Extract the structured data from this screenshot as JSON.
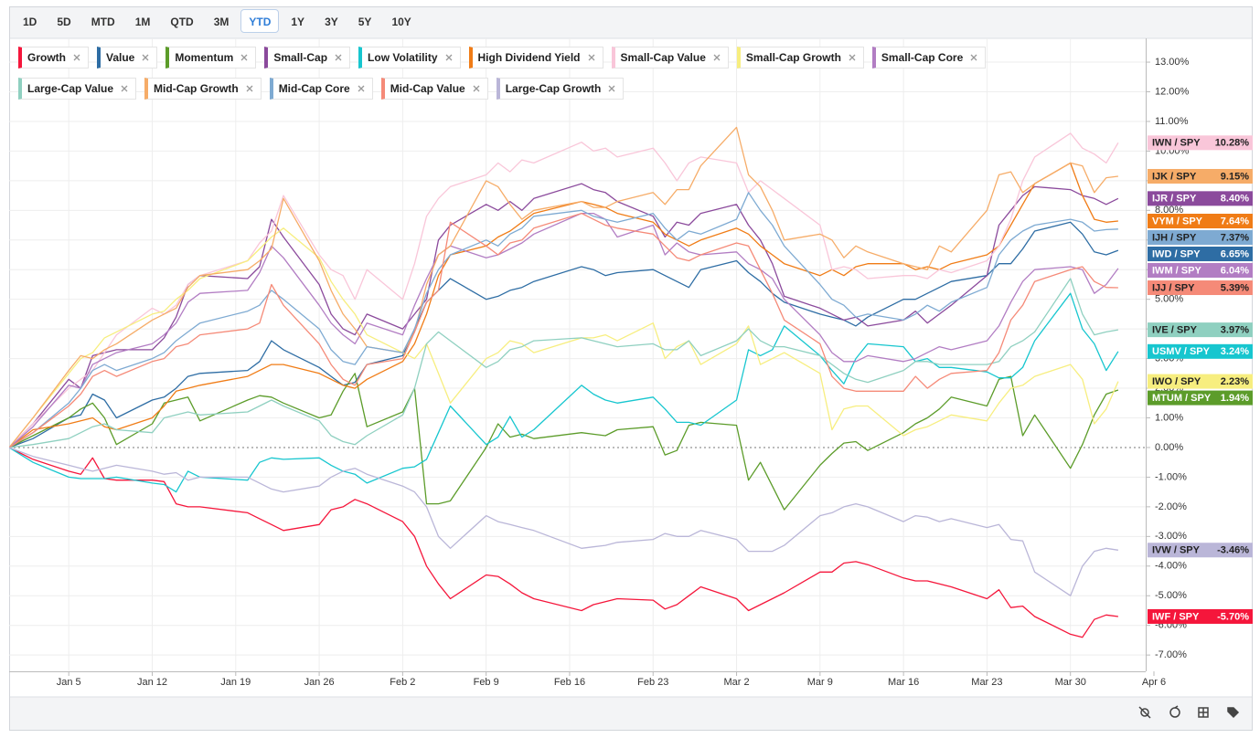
{
  "toolbar": {
    "ranges": [
      "1D",
      "5D",
      "MTD",
      "1M",
      "QTD",
      "3M",
      "YTD",
      "1Y",
      "3Y",
      "5Y",
      "10Y"
    ],
    "selected": "YTD"
  },
  "chart_data": {
    "type": "line",
    "x": [
      "Dec 31",
      "Jan 2",
      "Jan 5",
      "Jan 6",
      "Jan 7",
      "Jan 8",
      "Jan 9",
      "Jan 12",
      "Jan 13",
      "Jan 14",
      "Jan 15",
      "Jan 16",
      "Jan 20",
      "Jan 21",
      "Jan 22",
      "Jan 23",
      "Jan 26",
      "Jan 27",
      "Jan 28",
      "Jan 29",
      "Jan 30",
      "Feb 2",
      "Feb 3",
      "Feb 4",
      "Feb 5",
      "Feb 6",
      "Feb 9",
      "Feb 10",
      "Feb 11",
      "Feb 12",
      "Feb 13",
      "Feb 17",
      "Feb 18",
      "Feb 19",
      "Feb 20",
      "Feb 23",
      "Feb 24",
      "Feb 25",
      "Feb 26",
      "Feb 27",
      "Mar 2",
      "Mar 3",
      "Mar 4",
      "Mar 5",
      "Mar 6",
      "Mar 9",
      "Mar 10",
      "Mar 11",
      "Mar 12",
      "Mar 13",
      "Mar 16",
      "Mar 17",
      "Mar 18",
      "Mar 19",
      "Mar 20",
      "Mar 23",
      "Mar 24",
      "Mar 25",
      "Mar 26",
      "Mar 27",
      "Mar 30",
      "Mar 31",
      "Apr 1",
      "Apr 2",
      "Apr 3"
    ],
    "xlim": [
      "Dec 31",
      "Apr 6"
    ],
    "xticks": [
      "Jan 5",
      "Jan 12",
      "Jan 19",
      "Jan 26",
      "Feb 2",
      "Feb 9",
      "Feb 16",
      "Feb 23",
      "Mar 2",
      "Mar 9",
      "Mar 16",
      "Mar 23",
      "Mar 30",
      "Apr 6"
    ],
    "ylim": [
      -7.55,
      13.71
    ],
    "yticks": [
      {
        "value": -7,
        "label": "-7.00%"
      },
      {
        "value": -6,
        "label": "-6.00%"
      },
      {
        "value": -5,
        "label": "-5.00%"
      },
      {
        "value": -4,
        "label": "-4.00%"
      },
      {
        "value": -3,
        "label": "-3.00%"
      },
      {
        "value": -2,
        "label": "-2.00%"
      },
      {
        "value": -1,
        "label": "-1.00%"
      },
      {
        "value": 0,
        "label": "0.00%"
      },
      {
        "value": 1,
        "label": "1.00%"
      },
      {
        "value": 2,
        "label": "2.00%"
      },
      {
        "value": 3,
        "label": "3.00%"
      },
      {
        "value": 4,
        "label": "4.00%"
      },
      {
        "value": 5,
        "label": "5.00%"
      },
      {
        "value": 6,
        "label": "6.00%"
      },
      {
        "value": 7,
        "label": "7.00%"
      },
      {
        "value": 8,
        "label": "8.00%"
      },
      {
        "value": 9,
        "label": "9.00%"
      },
      {
        "value": 10,
        "label": "10.00%"
      },
      {
        "value": 11,
        "label": "11.00%"
      },
      {
        "value": 12,
        "label": "12.00%"
      },
      {
        "value": 13,
        "label": "13.00%"
      }
    ],
    "grid": true,
    "series": [
      {
        "name": "Growth",
        "ticker": "IWF / SPY",
        "color": "#f5163b",
        "end_label": "-5.70%",
        "values": [
          0,
          -0.4,
          -0.8,
          -0.9,
          -0.35,
          -1.05,
          -1.1,
          -1.1,
          -1.15,
          -1.9,
          -2.0,
          -2.0,
          -2.2,
          -2.4,
          -2.6,
          -2.8,
          -2.6,
          -2.1,
          -2.0,
          -1.75,
          -1.9,
          -2.5,
          -3.0,
          -4.0,
          -4.6,
          -5.1,
          -4.3,
          -4.35,
          -4.6,
          -4.9,
          -5.1,
          -5.5,
          -5.3,
          -5.2,
          -5.1,
          -5.15,
          -5.45,
          -5.3,
          -5.0,
          -4.7,
          -5.1,
          -5.5,
          -5.3,
          -5.1,
          -4.9,
          -4.2,
          -4.2,
          -3.9,
          -3.85,
          -3.95,
          -4.4,
          -4.5,
          -4.5,
          -4.6,
          -4.7,
          -5.1,
          -4.8,
          -5.4,
          -5.35,
          -5.7,
          -6.3,
          -6.4,
          -5.8,
          -5.65,
          -5.7
        ]
      },
      {
        "name": "Value",
        "ticker": "IWD / SPY",
        "color": "#2e6da4",
        "end_label": "6.65%",
        "values": [
          0,
          0.3,
          1.0,
          1.1,
          1.8,
          1.6,
          1.0,
          1.6,
          1.7,
          2.0,
          2.4,
          2.5,
          2.6,
          2.9,
          3.6,
          3.3,
          2.7,
          2.4,
          2.1,
          2.2,
          2.8,
          3.1,
          4.0,
          4.9,
          5.3,
          5.7,
          5.0,
          5.1,
          5.3,
          5.4,
          5.6,
          6.1,
          6.0,
          5.8,
          5.9,
          6.0,
          5.8,
          5.6,
          5.4,
          6.0,
          6.3,
          5.9,
          5.6,
          5.2,
          4.9,
          4.5,
          4.4,
          4.3,
          4.1,
          4.4,
          5.0,
          5.0,
          5.2,
          5.4,
          5.6,
          5.8,
          6.2,
          6.2,
          6.7,
          7.3,
          7.6,
          7.2,
          6.6,
          6.5,
          6.65
        ]
      },
      {
        "name": "Momentum",
        "ticker": "MTUM / SPY",
        "color": "#5c9c2a",
        "end_label": "1.94%",
        "values": [
          0,
          0.4,
          1.0,
          1.3,
          1.5,
          1.0,
          0.1,
          0.8,
          1.5,
          1.6,
          1.7,
          0.9,
          1.6,
          1.75,
          1.7,
          1.5,
          1.0,
          1.1,
          1.9,
          2.5,
          0.7,
          1.2,
          2.0,
          -1.9,
          -1.9,
          -1.8,
          0.0,
          0.8,
          0.35,
          0.45,
          0.3,
          0.5,
          0.45,
          0.4,
          0.6,
          0.7,
          -0.25,
          -0.1,
          0.75,
          0.85,
          0.75,
          -1.1,
          -0.5,
          -1.3,
          -2.1,
          -0.6,
          -0.2,
          0.15,
          0.2,
          -0.1,
          0.5,
          0.8,
          1.0,
          1.3,
          1.7,
          1.4,
          2.3,
          2.4,
          0.4,
          1.1,
          -0.7,
          0.1,
          1.1,
          1.8,
          1.94
        ]
      },
      {
        "name": "Small-Cap",
        "ticker": "IJR / SPY",
        "color": "#8b4a9c",
        "end_label": "8.40%",
        "values": [
          0,
          0.8,
          2.3,
          2.0,
          3.1,
          3.2,
          3.3,
          3.3,
          3.7,
          4.4,
          5.5,
          5.8,
          5.7,
          6.1,
          7.7,
          7.1,
          5.5,
          4.5,
          4.0,
          3.8,
          4.5,
          4.0,
          4.5,
          5.0,
          7.0,
          7.5,
          8.2,
          8.0,
          8.3,
          8.0,
          8.4,
          8.9,
          8.7,
          8.6,
          8.3,
          7.8,
          7.1,
          7.6,
          7.5,
          7.9,
          8.2,
          7.5,
          7.0,
          6.2,
          5.1,
          4.7,
          4.5,
          4.3,
          4.4,
          4.1,
          4.3,
          4.6,
          4.2,
          4.5,
          4.8,
          5.8,
          7.5,
          8.0,
          8.5,
          8.8,
          8.7,
          8.5,
          8.4,
          8.2,
          8.4
        ]
      },
      {
        "name": "Low Volatility",
        "ticker": "USMV / SPY",
        "color": "#17c6cf",
        "end_label": "3.24%",
        "values": [
          0,
          -0.5,
          -1.0,
          -1.05,
          -1.05,
          -1.05,
          -1.0,
          -1.2,
          -1.25,
          -1.5,
          -0.8,
          -1.0,
          -1.1,
          -0.5,
          -0.35,
          -0.4,
          -0.35,
          -0.6,
          -0.8,
          -0.9,
          -1.2,
          -0.7,
          -0.65,
          -0.4,
          0.5,
          1.4,
          0.1,
          0.35,
          1.05,
          0.35,
          0.6,
          2.1,
          1.8,
          1.6,
          1.5,
          1.7,
          1.3,
          0.85,
          0.85,
          0.75,
          1.6,
          3.3,
          3.1,
          3.3,
          4.1,
          3.1,
          2.6,
          2.15,
          3.0,
          3.5,
          3.4,
          2.9,
          3.0,
          2.7,
          2.7,
          2.55,
          2.35,
          2.35,
          2.7,
          3.6,
          5.2,
          4.0,
          3.5,
          2.6,
          3.24
        ]
      },
      {
        "name": "High Dividend Yield",
        "ticker": "VYM / SPY",
        "color": "#f07c16",
        "end_label": "7.64%",
        "values": [
          0,
          0.6,
          0.8,
          0.9,
          1.0,
          0.7,
          0.6,
          1.0,
          1.4,
          1.9,
          2.0,
          2.1,
          2.4,
          2.6,
          2.8,
          2.8,
          2.5,
          2.3,
          2.1,
          2.0,
          2.3,
          2.9,
          3.5,
          4.5,
          5.8,
          6.5,
          6.8,
          7.1,
          7.3,
          7.6,
          7.9,
          8.3,
          8.2,
          8.1,
          7.9,
          7.6,
          7.2,
          7.0,
          6.8,
          7.0,
          7.4,
          7.2,
          6.8,
          6.5,
          6.2,
          5.8,
          6.0,
          5.8,
          6.1,
          6.2,
          6.2,
          6.0,
          6.1,
          6.0,
          6.2,
          6.5,
          6.8,
          7.5,
          8.2,
          8.9,
          9.6,
          8.5,
          7.7,
          7.6,
          7.64
        ]
      },
      {
        "name": "Small-Cap Value",
        "ticker": "IWN / SPY",
        "color": "#f9c6d9",
        "end_label": "10.28%",
        "values": [
          0,
          0.8,
          2.0,
          2.3,
          2.6,
          3.2,
          3.8,
          4.7,
          4.5,
          4.8,
          5.5,
          5.8,
          6.3,
          6.9,
          7.3,
          8.5,
          6.5,
          6.0,
          5.8,
          5.0,
          6.0,
          5.0,
          6.2,
          7.8,
          8.4,
          8.8,
          9.2,
          9.6,
          9.3,
          9.7,
          9.6,
          10.3,
          10.0,
          10.1,
          9.8,
          10.1,
          9.6,
          9.0,
          9.6,
          9.8,
          9.6,
          8.6,
          9.0,
          8.7,
          8.4,
          7.5,
          6.0,
          6.1,
          6.0,
          5.7,
          5.8,
          5.8,
          5.7,
          6.0,
          5.9,
          6.3,
          6.8,
          7.7,
          9.0,
          9.8,
          10.6,
          10.1,
          9.9,
          9.6,
          10.28
        ]
      },
      {
        "name": "Small-Cap Growth",
        "ticker": "IWO / SPY",
        "color": "#f7ee7f",
        "end_label": "2.23%",
        "values": [
          0,
          1.0,
          2.5,
          3.0,
          3.2,
          3.7,
          3.9,
          4.5,
          4.6,
          5.0,
          5.3,
          5.7,
          6.3,
          6.7,
          7.1,
          7.4,
          6.4,
          5.6,
          5.0,
          4.5,
          3.8,
          3.2,
          3.0,
          3.5,
          2.5,
          1.5,
          3.0,
          3.2,
          3.6,
          3.5,
          3.2,
          3.7,
          3.7,
          3.8,
          3.6,
          4.2,
          3.0,
          3.4,
          3.6,
          2.8,
          3.5,
          4.1,
          2.8,
          3.0,
          3.2,
          2.5,
          0.6,
          1.3,
          1.4,
          1.4,
          0.4,
          0.6,
          0.7,
          0.9,
          1.1,
          0.9,
          1.5,
          2.0,
          2.1,
          2.4,
          2.8,
          2.3,
          0.8,
          1.3,
          2.23
        ]
      },
      {
        "name": "Small-Cap Core",
        "ticker": "IWM / SPY",
        "color": "#b27dc3",
        "end_label": "6.04%",
        "values": [
          0,
          0.7,
          2.1,
          2.0,
          2.8,
          3.0,
          3.2,
          3.5,
          3.8,
          4.2,
          4.9,
          5.2,
          5.3,
          5.9,
          6.8,
          6.4,
          4.8,
          4.2,
          3.8,
          3.5,
          4.2,
          3.8,
          4.8,
          5.7,
          6.5,
          6.8,
          6.4,
          6.5,
          6.7,
          6.9,
          7.2,
          7.9,
          7.9,
          7.7,
          7.1,
          7.5,
          6.5,
          6.9,
          6.6,
          6.5,
          6.6,
          6.2,
          6.0,
          5.7,
          5.0,
          3.8,
          3.2,
          2.9,
          2.9,
          3.1,
          2.9,
          3.0,
          3.2,
          3.4,
          3.3,
          3.6,
          4.1,
          4.9,
          5.6,
          6.0,
          6.1,
          6.0,
          5.2,
          5.5,
          6.04
        ]
      },
      {
        "name": "Large-Cap Value",
        "ticker": "IVE / SPY",
        "color": "#8fd0c0",
        "end_label": "3.97%",
        "values": [
          0,
          0.1,
          0.3,
          0.5,
          0.7,
          0.8,
          0.6,
          0.5,
          1.0,
          1.1,
          1.2,
          1.1,
          1.2,
          1.4,
          1.6,
          1.4,
          0.9,
          0.4,
          0.2,
          0.1,
          0.4,
          1.1,
          2.0,
          3.5,
          3.9,
          3.6,
          2.7,
          2.9,
          3.3,
          3.4,
          3.6,
          3.7,
          3.6,
          3.5,
          3.4,
          3.5,
          3.3,
          3.3,
          3.6,
          3.1,
          3.6,
          4.0,
          3.6,
          3.4,
          3.4,
          3.1,
          2.8,
          2.5,
          2.3,
          2.2,
          2.6,
          2.9,
          2.9,
          2.8,
          2.8,
          2.8,
          2.9,
          3.4,
          3.6,
          3.9,
          5.7,
          4.5,
          3.8,
          3.9,
          3.97
        ]
      },
      {
        "name": "Mid-Cap Growth",
        "ticker": "IJK / SPY",
        "color": "#f6ac68",
        "end_label": "9.15%",
        "values": [
          0,
          1.0,
          2.6,
          3.1,
          3.0,
          3.3,
          3.5,
          4.3,
          4.5,
          4.7,
          5.4,
          5.8,
          6.0,
          6.3,
          6.7,
          8.4,
          6.3,
          5.3,
          4.5,
          4.0,
          3.4,
          3.2,
          3.9,
          5.5,
          6.5,
          6.8,
          9.0,
          8.8,
          8.2,
          7.7,
          8.0,
          8.3,
          8.1,
          8.1,
          8.3,
          8.6,
          8.2,
          8.7,
          8.7,
          9.5,
          10.8,
          9.2,
          8.8,
          8.0,
          7.0,
          7.2,
          7.0,
          6.4,
          6.8,
          6.6,
          6.2,
          6.1,
          6.0,
          6.8,
          6.6,
          8.0,
          9.2,
          9.3,
          8.6,
          8.9,
          9.6,
          9.5,
          8.6,
          9.1,
          9.15
        ]
      },
      {
        "name": "Mid-Cap Core",
        "ticker": "IJH / SPY",
        "color": "#7eaad2",
        "end_label": "7.37%",
        "values": [
          0,
          0.5,
          1.5,
          2.0,
          2.6,
          2.8,
          2.6,
          3.0,
          3.2,
          3.6,
          3.9,
          4.2,
          4.6,
          4.8,
          5.3,
          5.0,
          4.0,
          3.3,
          2.9,
          2.8,
          3.4,
          3.2,
          4.0,
          5.2,
          6.0,
          6.5,
          7.0,
          6.8,
          7.2,
          7.4,
          7.8,
          8.0,
          7.8,
          7.7,
          7.6,
          7.9,
          7.4,
          7.0,
          7.3,
          7.2,
          7.7,
          8.6,
          8.0,
          7.5,
          6.8,
          5.5,
          5.0,
          4.8,
          4.4,
          4.5,
          4.3,
          4.5,
          4.8,
          4.6,
          4.9,
          5.4,
          6.5,
          7.0,
          7.3,
          7.5,
          7.7,
          7.6,
          7.3,
          7.35,
          7.37
        ]
      },
      {
        "name": "Mid-Cap Value",
        "ticker": "IJJ / SPY",
        "color": "#f58a78",
        "end_label": "5.39%",
        "values": [
          0,
          0.5,
          1.4,
          1.8,
          2.4,
          2.6,
          2.4,
          2.9,
          3.0,
          3.4,
          3.5,
          3.8,
          4.0,
          4.2,
          5.5,
          4.8,
          3.5,
          2.8,
          2.3,
          2.1,
          2.8,
          3.0,
          3.9,
          4.9,
          5.3,
          7.6,
          6.8,
          6.5,
          6.9,
          7.0,
          7.4,
          7.9,
          7.7,
          7.5,
          7.4,
          7.2,
          6.8,
          6.4,
          6.3,
          6.5,
          6.9,
          6.8,
          6.0,
          5.2,
          4.3,
          3.5,
          2.4,
          2.0,
          1.9,
          1.9,
          1.9,
          2.4,
          2.0,
          2.3,
          2.5,
          2.6,
          3.2,
          4.3,
          4.8,
          5.6,
          6.0,
          6.1,
          5.6,
          5.4,
          5.39
        ]
      },
      {
        "name": "Large-Cap Growth",
        "ticker": "IVW / SPY",
        "color": "#bab6d8",
        "end_label": "-3.46%",
        "values": [
          0,
          -0.3,
          -0.6,
          -0.7,
          -0.8,
          -0.7,
          -0.6,
          -0.8,
          -0.9,
          -0.85,
          -1.1,
          -1.0,
          -1.0,
          -1.2,
          -1.4,
          -1.5,
          -1.3,
          -1.0,
          -0.8,
          -0.7,
          -0.9,
          -1.3,
          -1.5,
          -2.0,
          -3.0,
          -3.4,
          -2.3,
          -2.5,
          -2.6,
          -2.7,
          -2.8,
          -3.4,
          -3.35,
          -3.3,
          -3.2,
          -3.1,
          -2.9,
          -3.0,
          -3.0,
          -2.8,
          -3.1,
          -3.5,
          -3.5,
          -3.5,
          -3.3,
          -2.3,
          -2.2,
          -2.0,
          -1.9,
          -2.0,
          -2.5,
          -2.3,
          -2.35,
          -2.5,
          -2.4,
          -2.7,
          -2.6,
          -3.1,
          -3.15,
          -4.2,
          -5.0,
          -4.0,
          -3.5,
          -3.4,
          -3.46
        ]
      }
    ]
  }
}
